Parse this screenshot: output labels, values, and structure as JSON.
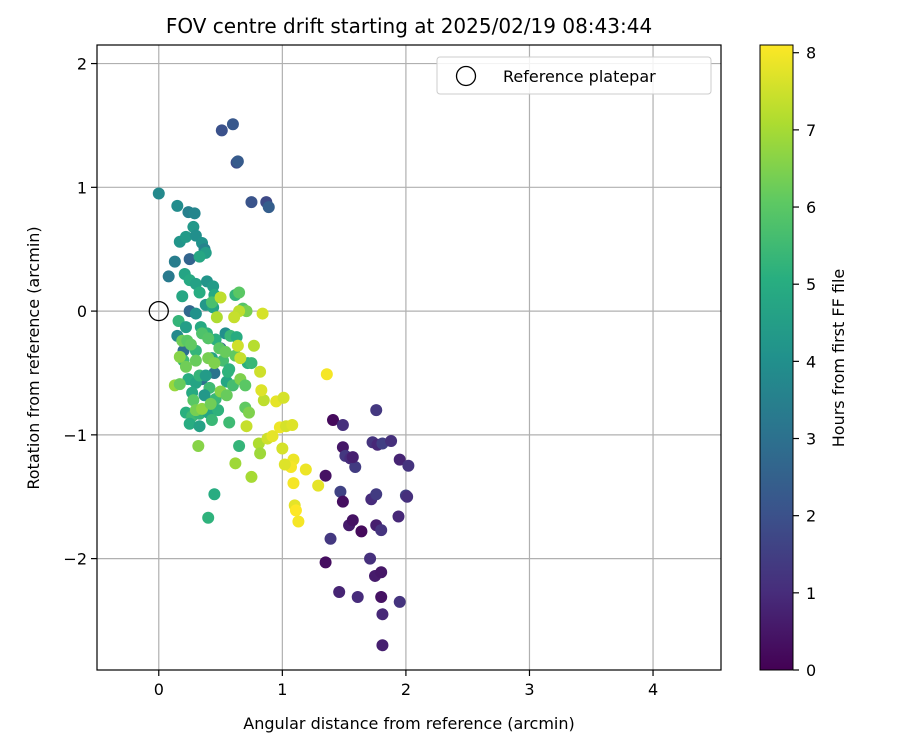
{
  "chart_data": {
    "type": "scatter",
    "title": "FOV centre drift starting at 2025/02/19 08:43:44",
    "xlabel": "Angular distance from reference (arcmin)",
    "ylabel": "Rotation from reference (arcmin)",
    "xlim": [
      -0.5,
      4.55
    ],
    "ylim": [
      -2.9,
      2.15
    ],
    "xticks": [
      0,
      1,
      2,
      3,
      4
    ],
    "yticks": [
      -2,
      -1,
      0,
      1,
      2
    ],
    "grid": true,
    "legend": {
      "position": "top-right",
      "entries": [
        "Reference platepar"
      ]
    },
    "reference_point": {
      "x": 0,
      "y": 0,
      "marker": "open-circle"
    },
    "colorbar": {
      "label": "Hours from first FF file",
      "colormap": "viridis",
      "range": [
        0,
        8.1
      ],
      "ticks": [
        0,
        1,
        2,
        3,
        4,
        5,
        6,
        7,
        8
      ]
    },
    "points": [
      {
        "x": 1.41,
        "y": -0.88,
        "c": 0.2
      },
      {
        "x": 1.49,
        "y": -0.92,
        "c": 1.1
      },
      {
        "x": 1.49,
        "y": -1.1,
        "c": 0.5
      },
      {
        "x": 1.51,
        "y": -1.17,
        "c": 1.3
      },
      {
        "x": 1.55,
        "y": -1.19,
        "c": 1.0
      },
      {
        "x": 1.59,
        "y": -1.26,
        "c": 1.4
      },
      {
        "x": 1.57,
        "y": -1.18,
        "c": 0.7
      },
      {
        "x": 1.73,
        "y": -1.06,
        "c": 1.2
      },
      {
        "x": 1.77,
        "y": -1.08,
        "c": 0.9
      },
      {
        "x": 1.81,
        "y": -1.07,
        "c": 1.5
      },
      {
        "x": 1.88,
        "y": -1.05,
        "c": 1.1
      },
      {
        "x": 1.76,
        "y": -0.8,
        "c": 1.3
      },
      {
        "x": 1.95,
        "y": -1.2,
        "c": 0.8
      },
      {
        "x": 2.02,
        "y": -1.25,
        "c": 1.2
      },
      {
        "x": 1.35,
        "y": -1.33,
        "c": 0.4
      },
      {
        "x": 1.47,
        "y": -1.46,
        "c": 1.6
      },
      {
        "x": 1.49,
        "y": -1.54,
        "c": 0.3
      },
      {
        "x": 1.54,
        "y": -1.73,
        "c": 0.6
      },
      {
        "x": 1.57,
        "y": -1.69,
        "c": 0.4
      },
      {
        "x": 1.64,
        "y": -1.78,
        "c": 0.2
      },
      {
        "x": 1.72,
        "y": -1.52,
        "c": 1.0
      },
      {
        "x": 1.76,
        "y": -1.48,
        "c": 1.4
      },
      {
        "x": 1.76,
        "y": -1.73,
        "c": 0.7
      },
      {
        "x": 1.8,
        "y": -1.77,
        "c": 1.2
      },
      {
        "x": 1.94,
        "y": -1.66,
        "c": 0.9
      },
      {
        "x": 2.0,
        "y": -1.49,
        "c": 1.5
      },
      {
        "x": 2.01,
        "y": -1.5,
        "c": 1.1
      },
      {
        "x": 1.39,
        "y": -1.84,
        "c": 1.3
      },
      {
        "x": 1.35,
        "y": -2.03,
        "c": 0.3
      },
      {
        "x": 1.46,
        "y": -2.27,
        "c": 0.8
      },
      {
        "x": 1.61,
        "y": -2.31,
        "c": 1.0
      },
      {
        "x": 1.71,
        "y": -2.0,
        "c": 1.1
      },
      {
        "x": 1.75,
        "y": -2.14,
        "c": 0.6
      },
      {
        "x": 1.8,
        "y": -2.11,
        "c": 0.5
      },
      {
        "x": 1.8,
        "y": -2.31,
        "c": 0.4
      },
      {
        "x": 1.81,
        "y": -2.45,
        "c": 0.9
      },
      {
        "x": 1.81,
        "y": -2.7,
        "c": 0.7
      },
      {
        "x": 1.95,
        "y": -2.35,
        "c": 1.2
      },
      {
        "x": 0.51,
        "y": 1.46,
        "c": 2.0
      },
      {
        "x": 0.6,
        "y": 1.51,
        "c": 2.2
      },
      {
        "x": 0.63,
        "y": 1.2,
        "c": 1.9
      },
      {
        "x": 0.64,
        "y": 1.21,
        "c": 2.3
      },
      {
        "x": 0.75,
        "y": 0.88,
        "c": 2.1
      },
      {
        "x": 0.87,
        "y": 0.88,
        "c": 1.8
      },
      {
        "x": 0.89,
        "y": 0.84,
        "c": 2.4
      },
      {
        "x": 0.25,
        "y": 0.42,
        "c": 2.6
      },
      {
        "x": 0.25,
        "y": 0.0,
        "c": 2.7
      },
      {
        "x": 0.2,
        "y": -0.32,
        "c": 2.9
      },
      {
        "x": 0.5,
        "y": -0.3,
        "c": 2.8
      },
      {
        "x": 0.35,
        "y": -0.55,
        "c": 3.0
      },
      {
        "x": 0.45,
        "y": -0.5,
        "c": 3.1
      },
      {
        "x": 0.0,
        "y": 0.95,
        "c": 3.8
      },
      {
        "x": 0.15,
        "y": 0.85,
        "c": 3.9
      },
      {
        "x": 0.24,
        "y": 0.8,
        "c": 3.5
      },
      {
        "x": 0.29,
        "y": 0.79,
        "c": 3.7
      },
      {
        "x": 0.17,
        "y": 0.56,
        "c": 4.2
      },
      {
        "x": 0.22,
        "y": 0.6,
        "c": 4.4
      },
      {
        "x": 0.28,
        "y": 0.68,
        "c": 4.3
      },
      {
        "x": 0.3,
        "y": 0.61,
        "c": 4.0
      },
      {
        "x": 0.35,
        "y": 0.55,
        "c": 4.1
      },
      {
        "x": 0.37,
        "y": 0.5,
        "c": 3.6
      },
      {
        "x": 0.38,
        "y": 0.47,
        "c": 4.5
      },
      {
        "x": 0.33,
        "y": 0.44,
        "c": 4.8
      },
      {
        "x": 0.13,
        "y": 0.4,
        "c": 3.4
      },
      {
        "x": 0.08,
        "y": 0.28,
        "c": 3.3
      },
      {
        "x": 0.21,
        "y": 0.3,
        "c": 4.7
      },
      {
        "x": 0.25,
        "y": 0.25,
        "c": 4.9
      },
      {
        "x": 0.3,
        "y": 0.22,
        "c": 4.6
      },
      {
        "x": 0.39,
        "y": 0.24,
        "c": 4.2
      },
      {
        "x": 0.44,
        "y": 0.2,
        "c": 4.4
      },
      {
        "x": 0.33,
        "y": 0.15,
        "c": 5.0
      },
      {
        "x": 0.19,
        "y": 0.12,
        "c": 4.8
      },
      {
        "x": 0.38,
        "y": 0.05,
        "c": 4.3
      },
      {
        "x": 0.44,
        "y": 0.03,
        "c": 4.7
      },
      {
        "x": 0.3,
        "y": -0.02,
        "c": 4.1
      },
      {
        "x": 0.16,
        "y": -0.08,
        "c": 5.3
      },
      {
        "x": 0.22,
        "y": -0.13,
        "c": 4.5
      },
      {
        "x": 0.34,
        "y": -0.13,
        "c": 4.9
      },
      {
        "x": 0.39,
        "y": -0.18,
        "c": 5.2
      },
      {
        "x": 0.15,
        "y": -0.2,
        "c": 3.8
      },
      {
        "x": 0.46,
        "y": -0.23,
        "c": 5.1
      },
      {
        "x": 0.54,
        "y": -0.18,
        "c": 4.0
      },
      {
        "x": 0.58,
        "y": -0.2,
        "c": 5.4
      },
      {
        "x": 0.63,
        "y": -0.21,
        "c": 5.0
      },
      {
        "x": 0.2,
        "y": -0.4,
        "c": 5.5
      },
      {
        "x": 0.3,
        "y": -0.32,
        "c": 5.3
      },
      {
        "x": 0.43,
        "y": -0.38,
        "c": 4.6
      },
      {
        "x": 0.52,
        "y": -0.4,
        "c": 5.6
      },
      {
        "x": 0.57,
        "y": -0.47,
        "c": 5.2
      },
      {
        "x": 0.72,
        "y": -0.42,
        "c": 5.1
      },
      {
        "x": 0.75,
        "y": -0.42,
        "c": 5.4
      },
      {
        "x": 0.24,
        "y": -0.55,
        "c": 5.0
      },
      {
        "x": 0.3,
        "y": -0.58,
        "c": 4.7
      },
      {
        "x": 0.33,
        "y": -0.52,
        "c": 5.3
      },
      {
        "x": 0.38,
        "y": -0.52,
        "c": 4.4
      },
      {
        "x": 0.41,
        "y": -0.62,
        "c": 5.5
      },
      {
        "x": 0.55,
        "y": -0.57,
        "c": 4.8
      },
      {
        "x": 0.56,
        "y": -0.49,
        "c": 5.2
      },
      {
        "x": 0.27,
        "y": -0.66,
        "c": 4.9
      },
      {
        "x": 0.37,
        "y": -0.68,
        "c": 4.3
      },
      {
        "x": 0.46,
        "y": -0.71,
        "c": 5.4
      },
      {
        "x": 0.6,
        "y": -0.6,
        "c": 5.6
      },
      {
        "x": 0.22,
        "y": -0.82,
        "c": 5.1
      },
      {
        "x": 0.27,
        "y": -0.85,
        "c": 5.5
      },
      {
        "x": 0.33,
        "y": -0.83,
        "c": 5.3
      },
      {
        "x": 0.4,
        "y": -0.82,
        "c": 4.7
      },
      {
        "x": 0.25,
        "y": -0.91,
        "c": 5.0
      },
      {
        "x": 0.33,
        "y": -0.93,
        "c": 4.6
      },
      {
        "x": 0.43,
        "y": -0.88,
        "c": 5.4
      },
      {
        "x": 0.48,
        "y": -0.8,
        "c": 5.2
      },
      {
        "x": 0.57,
        "y": -0.9,
        "c": 5.5
      },
      {
        "x": 0.65,
        "y": -1.09,
        "c": 5.3
      },
      {
        "x": 0.45,
        "y": -1.48,
        "c": 5.0
      },
      {
        "x": 0.4,
        "y": -1.67,
        "c": 5.2
      },
      {
        "x": 0.45,
        "y": 0.13,
        "c": 4.9
      },
      {
        "x": 0.62,
        "y": 0.13,
        "c": 5.3
      },
      {
        "x": 0.43,
        "y": 0.07,
        "c": 5.7
      },
      {
        "x": 0.35,
        "y": -0.18,
        "c": 5.8
      },
      {
        "x": 0.4,
        "y": -0.22,
        "c": 5.9
      },
      {
        "x": 0.19,
        "y": -0.24,
        "c": 6.3
      },
      {
        "x": 0.23,
        "y": -0.24,
        "c": 6.0
      },
      {
        "x": 0.26,
        "y": -0.27,
        "c": 6.1
      },
      {
        "x": 0.3,
        "y": -0.4,
        "c": 6.2
      },
      {
        "x": 0.4,
        "y": -0.38,
        "c": 6.4
      },
      {
        "x": 0.45,
        "y": -0.42,
        "c": 6.5
      },
      {
        "x": 0.49,
        "y": -0.3,
        "c": 6.0
      },
      {
        "x": 0.54,
        "y": -0.33,
        "c": 6.2
      },
      {
        "x": 0.65,
        "y": 0.15,
        "c": 6.0
      },
      {
        "x": 0.68,
        "y": 0.02,
        "c": 5.9
      },
      {
        "x": 0.71,
        "y": 0.0,
        "c": 6.4
      },
      {
        "x": 0.17,
        "y": -0.37,
        "c": 6.6
      },
      {
        "x": 0.22,
        "y": -0.45,
        "c": 6.3
      },
      {
        "x": 0.62,
        "y": -0.36,
        "c": 6.1
      },
      {
        "x": 0.66,
        "y": -0.55,
        "c": 6.5
      },
      {
        "x": 0.7,
        "y": -0.6,
        "c": 6.0
      },
      {
        "x": 0.13,
        "y": -0.6,
        "c": 6.8
      },
      {
        "x": 0.17,
        "y": -0.59,
        "c": 6.2
      },
      {
        "x": 0.28,
        "y": -0.72,
        "c": 6.0
      },
      {
        "x": 0.3,
        "y": -0.8,
        "c": 6.4
      },
      {
        "x": 0.35,
        "y": -0.79,
        "c": 6.7
      },
      {
        "x": 0.42,
        "y": -0.75,
        "c": 6.3
      },
      {
        "x": 0.5,
        "y": -0.65,
        "c": 6.6
      },
      {
        "x": 0.55,
        "y": -0.68,
        "c": 6.2
      },
      {
        "x": 0.7,
        "y": -0.78,
        "c": 6.1
      },
      {
        "x": 0.73,
        "y": -0.82,
        "c": 6.5
      },
      {
        "x": 0.32,
        "y": -1.09,
        "c": 6.6
      },
      {
        "x": 0.62,
        "y": -1.23,
        "c": 6.9
      },
      {
        "x": 0.75,
        "y": -1.34,
        "c": 7.0
      },
      {
        "x": 0.81,
        "y": -1.07,
        "c": 7.1
      },
      {
        "x": 0.82,
        "y": -1.15,
        "c": 6.9
      },
      {
        "x": 0.65,
        "y": -0.0,
        "c": 7.3
      },
      {
        "x": 0.61,
        "y": -0.05,
        "c": 7.4
      },
      {
        "x": 0.5,
        "y": 0.11,
        "c": 7.3
      },
      {
        "x": 0.47,
        "y": -0.05,
        "c": 7.1
      },
      {
        "x": 0.64,
        "y": -0.28,
        "c": 7.5
      },
      {
        "x": 0.77,
        "y": -0.28,
        "c": 7.2
      },
      {
        "x": 0.84,
        "y": -0.02,
        "c": 7.6
      },
      {
        "x": 0.66,
        "y": -0.38,
        "c": 7.4
      },
      {
        "x": 0.82,
        "y": -0.49,
        "c": 7.5
      },
      {
        "x": 0.85,
        "y": -0.72,
        "c": 7.3
      },
      {
        "x": 0.83,
        "y": -0.64,
        "c": 7.7
      },
      {
        "x": 0.95,
        "y": -0.73,
        "c": 7.8
      },
      {
        "x": 1.01,
        "y": -0.7,
        "c": 7.6
      },
      {
        "x": 0.71,
        "y": -0.93,
        "c": 7.4
      },
      {
        "x": 0.98,
        "y": -0.94,
        "c": 7.9
      },
      {
        "x": 1.03,
        "y": -0.93,
        "c": 7.6
      },
      {
        "x": 1.08,
        "y": -0.92,
        "c": 7.7
      },
      {
        "x": 0.88,
        "y": -1.03,
        "c": 7.5
      },
      {
        "x": 0.92,
        "y": -1.01,
        "c": 7.8
      },
      {
        "x": 1.0,
        "y": -1.11,
        "c": 7.6
      },
      {
        "x": 1.09,
        "y": -1.2,
        "c": 7.9
      },
      {
        "x": 1.07,
        "y": -1.26,
        "c": 8.0
      },
      {
        "x": 1.02,
        "y": -1.24,
        "c": 7.7
      },
      {
        "x": 1.19,
        "y": -1.28,
        "c": 7.9
      },
      {
        "x": 1.09,
        "y": -1.39,
        "c": 8.0
      },
      {
        "x": 1.1,
        "y": -1.57,
        "c": 7.8
      },
      {
        "x": 1.11,
        "y": -1.61,
        "c": 8.1
      },
      {
        "x": 1.13,
        "y": -1.7,
        "c": 8.0
      },
      {
        "x": 1.29,
        "y": -1.41,
        "c": 7.8
      },
      {
        "x": 1.36,
        "y": -0.51,
        "c": 8.0
      }
    ]
  }
}
